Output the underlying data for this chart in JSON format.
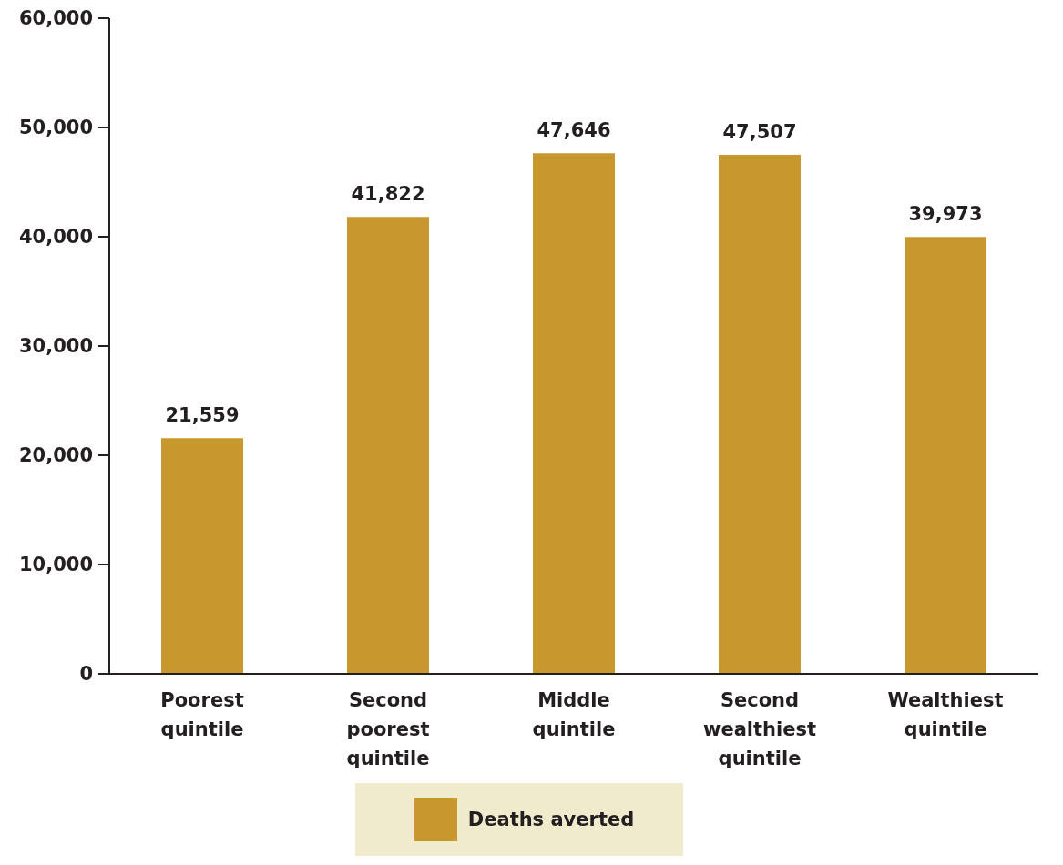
{
  "chart_data": {
    "type": "bar",
    "categories": [
      "Poorest quintile",
      "Second poorest quintile",
      "Middle quintile",
      "Second wealthiest quintile",
      "Wealthiest quintile"
    ],
    "series": [
      {
        "name": "Deaths averted",
        "color": "#c8982f",
        "values": [
          21559,
          41822,
          47646,
          47507,
          39973
        ],
        "value_labels": [
          "21,559",
          "41,822",
          "47,646",
          "47,507",
          "39,973"
        ]
      }
    ],
    "ylim": [
      0,
      60000
    ],
    "yticks": [
      {
        "value": 0,
        "label": "0"
      },
      {
        "value": 10000,
        "label": "10,000"
      },
      {
        "value": 20000,
        "label": "20,000"
      },
      {
        "value": 30000,
        "label": "30,000"
      },
      {
        "value": 40000,
        "label": "40,000"
      },
      {
        "value": 50000,
        "label": "50,000"
      },
      {
        "value": 60000,
        "label": "60,000"
      }
    ],
    "legend": "bottom",
    "grid": false
  }
}
